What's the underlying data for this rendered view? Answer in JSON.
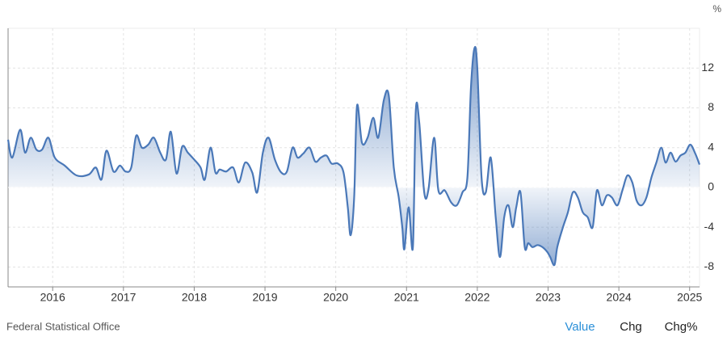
{
  "chart_data": {
    "type": "line",
    "unit": "%",
    "source": "Federal Statistical Office",
    "buttons": [
      "Value",
      "Chg",
      "Chg%"
    ],
    "color": "#4a78b8",
    "xlim": [
      2015.37,
      2025.14
    ],
    "xticks": [
      2016,
      2017,
      2018,
      2019,
      2020,
      2021,
      2022,
      2023,
      2024,
      2025
    ],
    "ylim": [
      -10,
      16
    ],
    "yticks": [
      -8,
      -4,
      0,
      4,
      8,
      12
    ],
    "grid": true,
    "x": [
      2015.37,
      2015.43,
      2015.54,
      2015.61,
      2015.69,
      2015.77,
      2015.85,
      2015.94,
      2016.03,
      2016.17,
      2016.34,
      2016.51,
      2016.61,
      2016.69,
      2016.76,
      2016.86,
      2016.95,
      2017.03,
      2017.11,
      2017.18,
      2017.26,
      2017.35,
      2017.43,
      2017.52,
      2017.6,
      2017.67,
      2017.75,
      2017.83,
      2017.91,
      2018.0,
      2018.09,
      2018.15,
      2018.23,
      2018.3,
      2018.36,
      2018.45,
      2018.55,
      2018.63,
      2018.72,
      2018.82,
      2018.89,
      2018.97,
      2019.05,
      2019.14,
      2019.23,
      2019.31,
      2019.39,
      2019.46,
      2019.54,
      2019.63,
      2019.71,
      2019.79,
      2019.87,
      2019.94,
      2020.03,
      2020.11,
      2020.17,
      2020.21,
      2020.26,
      2020.3,
      2020.37,
      2020.45,
      2020.53,
      2020.6,
      2020.68,
      2020.75,
      2020.82,
      2020.89,
      2020.94,
      2020.97,
      2021.03,
      2021.09,
      2021.13,
      2021.18,
      2021.25,
      2021.31,
      2021.39,
      2021.45,
      2021.54,
      2021.63,
      2021.71,
      2021.79,
      2021.86,
      2021.91,
      2021.96,
      2022.0,
      2022.06,
      2022.12,
      2022.19,
      2022.26,
      2022.32,
      2022.38,
      2022.44,
      2022.5,
      2022.55,
      2022.61,
      2022.67,
      2022.72,
      2022.78,
      2022.85,
      2022.92,
      2022.99,
      2023.03,
      2023.09,
      2023.13,
      2023.21,
      2023.28,
      2023.35,
      2023.42,
      2023.49,
      2023.56,
      2023.63,
      2023.69,
      2023.76,
      2023.83,
      2023.9,
      2023.98,
      2024.05,
      2024.12,
      2024.19,
      2024.25,
      2024.32,
      2024.39,
      2024.46,
      2024.53,
      2024.6,
      2024.66,
      2024.73,
      2024.8,
      2024.87,
      2024.94,
      2025.01,
      2025.08,
      2025.14
    ],
    "values": [
      4.8,
      3,
      5.8,
      3.5,
      5,
      3.8,
      3.8,
      5,
      3,
      2.2,
      1.2,
      1.3,
      2,
      0.8,
      3.7,
      1.6,
      2.2,
      1.6,
      2,
      5.2,
      4,
      4.3,
      5,
      3.5,
      2.8,
      5.6,
      1.4,
      4.1,
      3.5,
      2.8,
      2,
      0.8,
      4,
      1.5,
      1.8,
      1.6,
      2,
      0.5,
      2.5,
      1.5,
      -0.5,
      3.5,
      5,
      2.8,
      1.5,
      1.6,
      4,
      3,
      3.4,
      4,
      2.6,
      3,
      3.2,
      2.4,
      2.4,
      1.5,
      -2,
      -4.8,
      -1,
      8.2,
      4.5,
      5,
      7,
      5,
      8.8,
      9.2,
      2,
      -1,
      -4,
      -6.2,
      -2,
      -6,
      7.6,
      6.5,
      -0.5,
      -0.2,
      5,
      -0.3,
      -0.3,
      -1.5,
      -1.8,
      -0.5,
      1,
      10,
      14,
      12,
      1,
      -0.5,
      3,
      -3,
      -7,
      -3,
      -1.8,
      -4,
      -2,
      -0.5,
      -6,
      -5.6,
      -6,
      -5.8,
      -6,
      -6.5,
      -7,
      -7.8,
      -6,
      -4,
      -2.5,
      -0.5,
      -1,
      -2.5,
      -3,
      -4,
      -0.3,
      -1.8,
      -0.8,
      -1,
      -1.8,
      -0.3,
      1.2,
      0.5,
      -1.3,
      -1.8,
      -1,
      1,
      2.5,
      4,
      2.5,
      3.5,
      2.6,
      3.2,
      3.5,
      4.3,
      3.4,
      2.3
    ]
  }
}
